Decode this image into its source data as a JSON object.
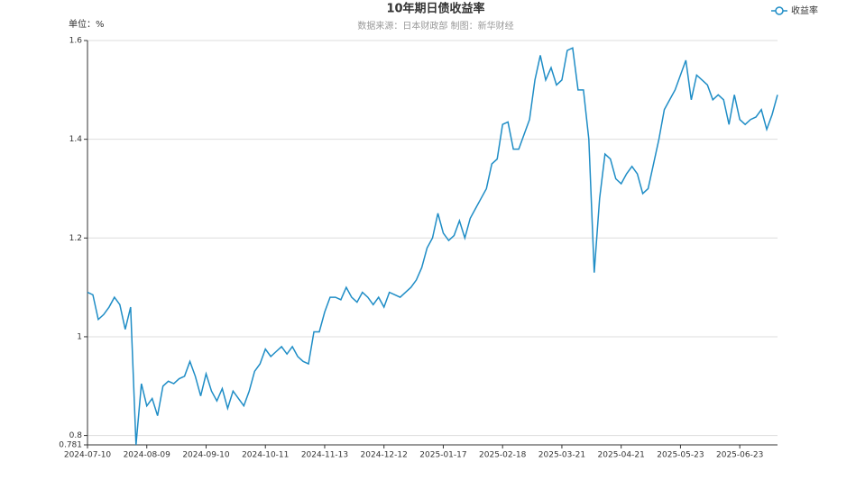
{
  "chart_data": {
    "type": "line",
    "title": "10年期日债收益率",
    "subtitle": "数据来源：日本财政部     制图：新华财经",
    "y_axis_label": "单位：%",
    "legend": "top-right",
    "grid": true,
    "ylim": [
      0.781,
      1.6
    ],
    "yticks": [
      0.781,
      0.8,
      1,
      1.2,
      1.4,
      1.6
    ],
    "categories": [
      "2024-07-10",
      null,
      null,
      null,
      null,
      null,
      null,
      null,
      null,
      null,
      null,
      "2024-08-09",
      null,
      null,
      null,
      null,
      null,
      null,
      null,
      null,
      null,
      null,
      "2024-09-10",
      null,
      null,
      null,
      null,
      null,
      null,
      null,
      null,
      null,
      null,
      "2024-10-11",
      null,
      null,
      null,
      null,
      null,
      null,
      null,
      null,
      null,
      null,
      "2024-11-13",
      null,
      null,
      null,
      null,
      null,
      null,
      null,
      null,
      null,
      null,
      "2024-12-12",
      null,
      null,
      null,
      null,
      null,
      null,
      null,
      null,
      null,
      null,
      "2025-01-17",
      null,
      null,
      null,
      null,
      null,
      null,
      null,
      null,
      null,
      null,
      "2025-02-18",
      null,
      null,
      null,
      null,
      null,
      null,
      null,
      null,
      null,
      null,
      "2025-03-21",
      null,
      null,
      null,
      null,
      null,
      null,
      null,
      null,
      null,
      null,
      "2025-04-21",
      null,
      null,
      null,
      null,
      null,
      null,
      null,
      null,
      null,
      null,
      "2025-05-23",
      null,
      null,
      null,
      null,
      null,
      null,
      null,
      null,
      null,
      null,
      "2025-06-23",
      null,
      null,
      null,
      null,
      null,
      null,
      null
    ],
    "series": [
      {
        "name": "收益率",
        "color": "#1f8dc6",
        "values": [
          1.09,
          1.085,
          1.035,
          1.045,
          1.06,
          1.08,
          1.065,
          1.015,
          1.06,
          0.781,
          0.905,
          0.86,
          0.875,
          0.84,
          0.9,
          0.91,
          0.905,
          0.915,
          0.92,
          0.95,
          0.92,
          0.88,
          0.925,
          0.89,
          0.87,
          0.895,
          0.855,
          0.89,
          0.875,
          0.86,
          0.89,
          0.93,
          0.945,
          0.975,
          0.96,
          0.97,
          0.98,
          0.965,
          0.98,
          0.96,
          0.95,
          0.945,
          1.01,
          1.01,
          1.05,
          1.08,
          1.08,
          1.075,
          1.1,
          1.08,
          1.07,
          1.09,
          1.08,
          1.065,
          1.08,
          1.06,
          1.09,
          1.085,
          1.08,
          1.09,
          1.1,
          1.115,
          1.14,
          1.18,
          1.2,
          1.25,
          1.21,
          1.195,
          1.205,
          1.235,
          1.2,
          1.24,
          1.26,
          1.28,
          1.3,
          1.35,
          1.36,
          1.43,
          1.435,
          1.38,
          1.38,
          1.41,
          1.44,
          1.52,
          1.57,
          1.52,
          1.545,
          1.51,
          1.52,
          1.58,
          1.585,
          1.5,
          1.5,
          1.4,
          1.13,
          1.28,
          1.37,
          1.36,
          1.32,
          1.31,
          1.33,
          1.345,
          1.33,
          1.29,
          1.3,
          1.35,
          1.4,
          1.46,
          1.48,
          1.5,
          1.53,
          1.56,
          1.48,
          1.53,
          1.52,
          1.51,
          1.48,
          1.49,
          1.48,
          1.43,
          1.49,
          1.44,
          1.43,
          1.44,
          1.445,
          1.46,
          1.42,
          1.45,
          1.49
        ]
      }
    ]
  }
}
